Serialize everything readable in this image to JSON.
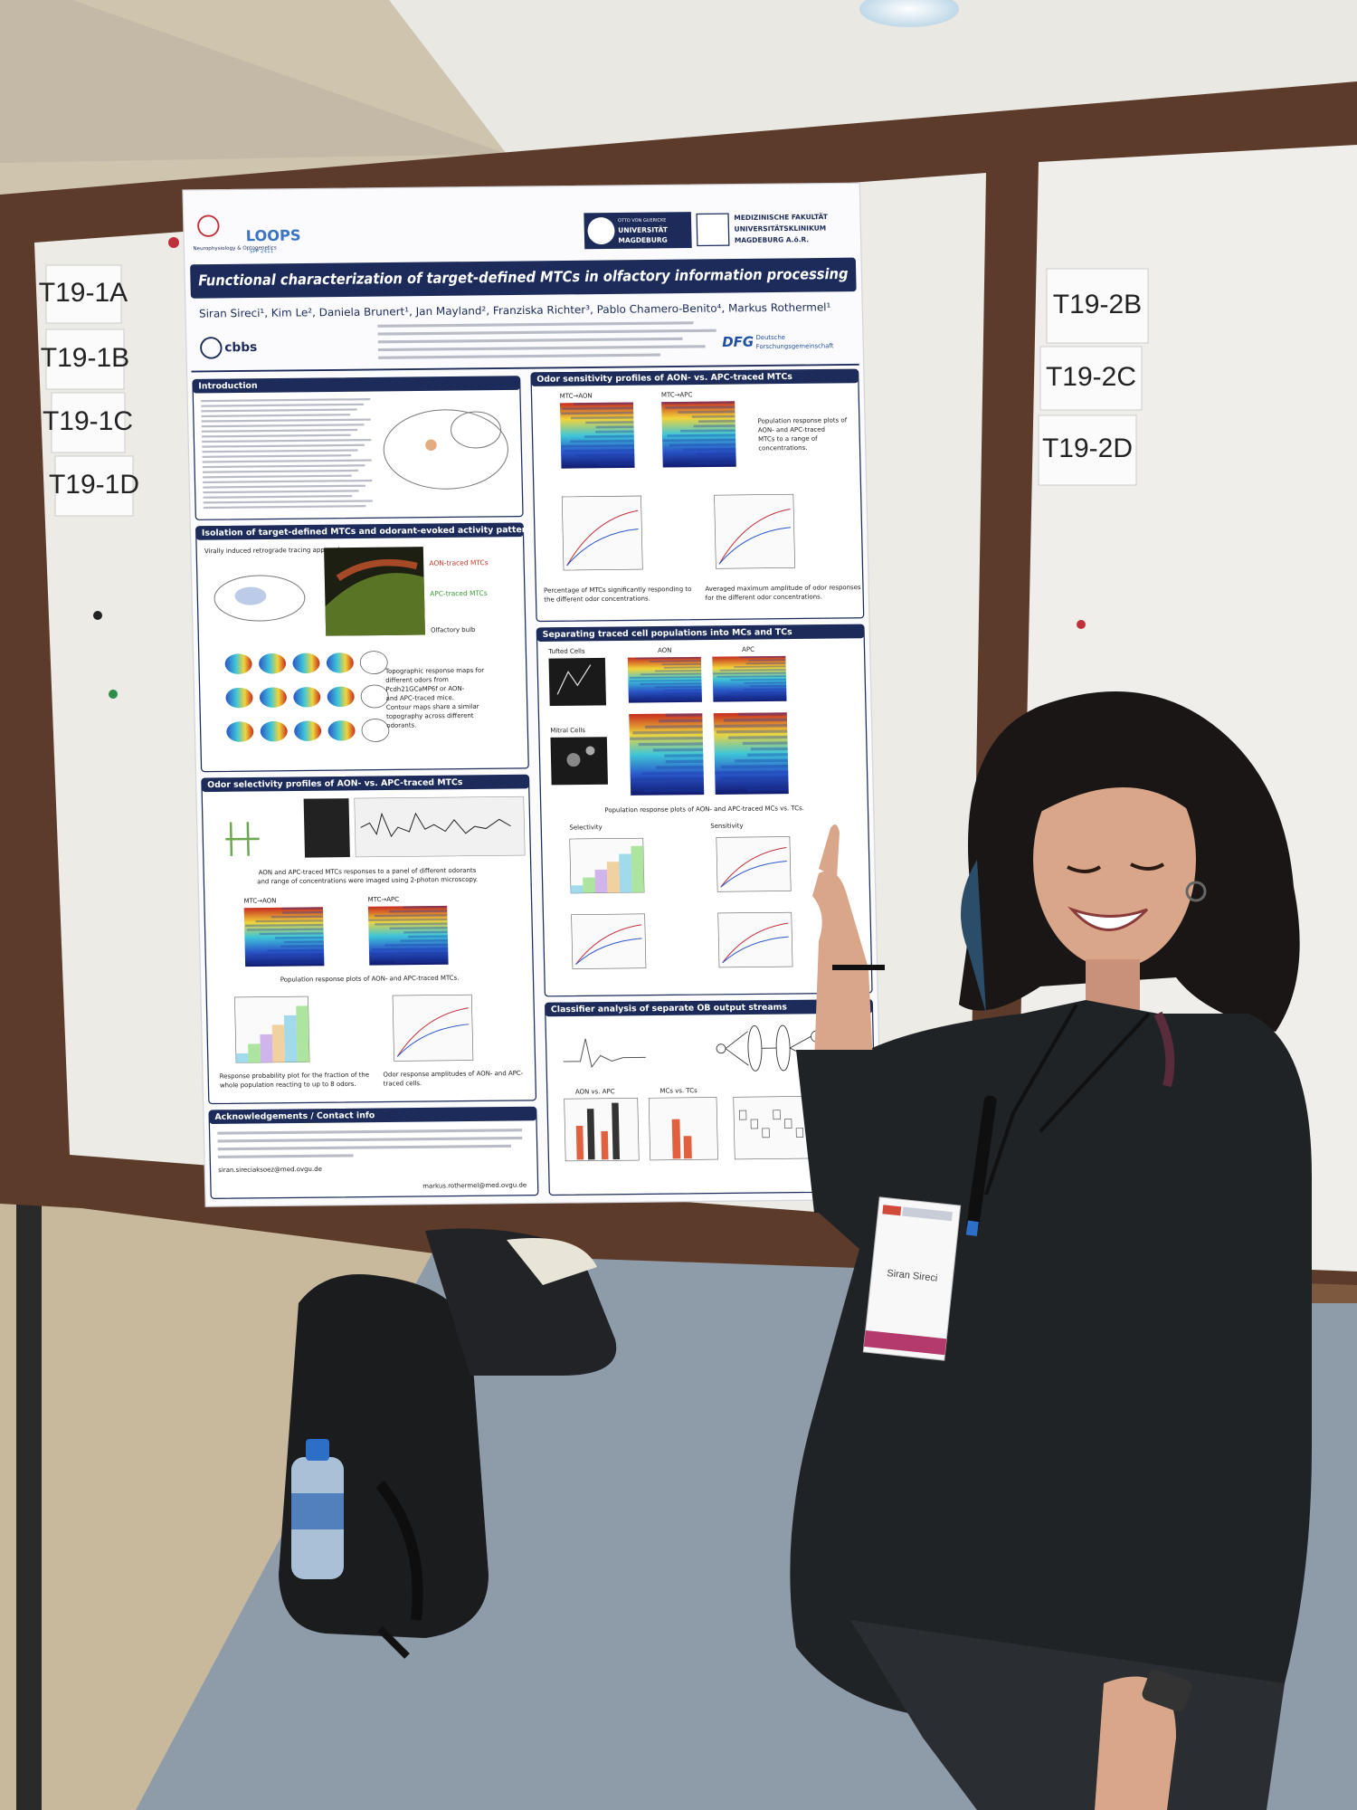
{
  "board_labels_left": [
    "T19-1A",
    "T19-1B",
    "T19-1C",
    "T19-1D"
  ],
  "board_labels_right": [
    "T19-2B",
    "T19-2C",
    "T19-2D"
  ],
  "poster": {
    "lab_logo": "Neurophysiology & Optogenetics",
    "loops_logo": "LOOPS",
    "loops_sub": "SPP 2411",
    "university": [
      "OTTO VON GUERICKE",
      "UNIVERSITÄT",
      "MAGDEBURG"
    ],
    "faculty": [
      "MEDIZINISCHE FAKULTÄT",
      "UNIVERSITÄTSKLINIKUM",
      "MAGDEBURG A.ö.R."
    ],
    "title": "Functional characterization of target-defined MTCs in olfactory information processing",
    "authors": "Siran Sireci¹, Kim Le², Daniela Brunert¹, Jan Mayland², Franziska Richter³, Pablo Chamero-Benito⁴, Markus Rothermel¹",
    "cbbs_logo": "cbbs",
    "dfg_logo": "DFG",
    "dfg_name": [
      "Deutsche",
      "Forschungsgemeinschaft"
    ],
    "introduction": {
      "heading": "Introduction"
    },
    "isolation": {
      "heading": "Isolation of target-defined MTCs and odorant-evoked activity patterns",
      "tracing": "Virally induced retrograde tracing approach:",
      "aon": "AON-traced MTCs",
      "apc": "APC-traced MTCs",
      "bulb": "Olfactory bulb",
      "caption": [
        "Topographic response maps for",
        "different odors from",
        "Pcdh21GCaMP6f or AON-",
        "and APC-traced mice.",
        "Contour maps share a similar",
        "topography across different",
        "odorants."
      ]
    },
    "selectivity": {
      "heading": "Odor selectivity profiles of AON- vs. APC-traced MTCs",
      "imaging_caption": [
        "AON and APC-traced MTCs responses to a panel of different odorants",
        "and range of concentrations were imaged using 2-photon microscopy."
      ],
      "aon": "MTC→AON",
      "apc": "MTC→APC",
      "population_caption": "Population response plots of AON- and APC-traced MTCs.",
      "probability_caption": [
        "Response probability plot for the fraction of the",
        "whole population reacting to up to 8 odors."
      ],
      "amplitude_caption": [
        "Odor response amplitudes of AON- and APC-",
        "traced cells."
      ]
    },
    "acknowledgements": {
      "heading": "Acknowledgements / Contact info",
      "emails": [
        "siran.sireciaksoez@med.ovgu.de",
        "markus.rothermel@med.ovgu.de"
      ]
    },
    "sensitivity": {
      "heading": "Odor sensitivity profiles of AON- vs. APC-traced MTCs",
      "aon": "MTC→AON",
      "apc": "MTC→APC",
      "caption": [
        "Population response plots of",
        "AON- and APC-traced",
        "MTCs to a range of",
        "concentrations."
      ],
      "percent_caption": [
        "Percentage of MTCs significantly responding to",
        "the different odor concentrations."
      ],
      "amplitude_caption": [
        "Averaged maximum amplitude of odor responses",
        "for the different odor concentrations."
      ]
    },
    "separating": {
      "heading": "Separating traced cell populations into MCs and TCs",
      "tufted": "Tufted Cells",
      "mitral": "Mitral Cells",
      "aon": "AON",
      "apc": "APC",
      "caption": "Population response plots of AON- and APC-traced MCs vs. TCs.",
      "selectivity": "Selectivity",
      "sensitivity": "Sensitivity"
    },
    "classifier": {
      "heading": "Classifier analysis of separate OB output streams",
      "aon_apc": "AON vs. APC",
      "mc_tc": "MCs vs. TCs"
    }
  },
  "badge": "Siran Sireci"
}
